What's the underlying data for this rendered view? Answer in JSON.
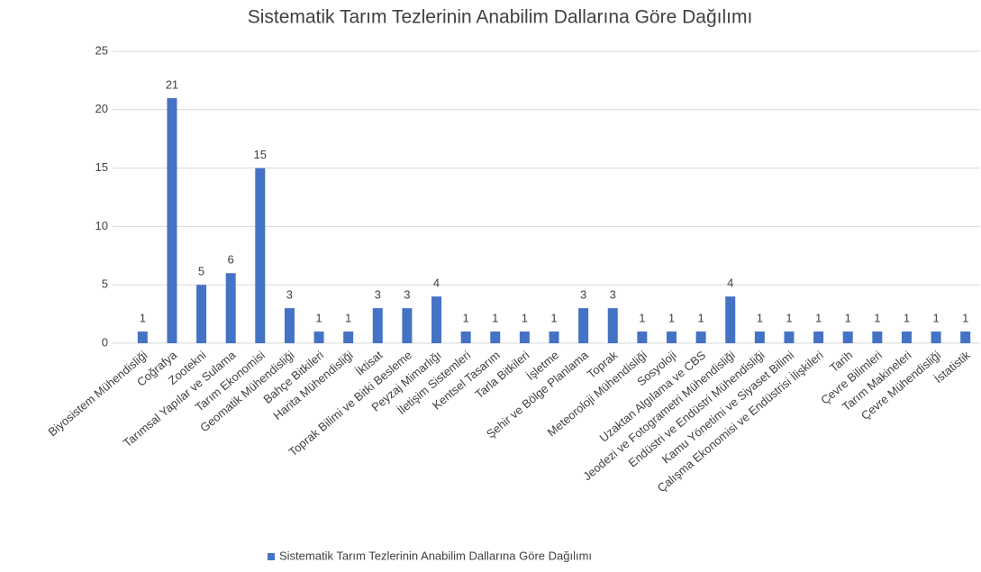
{
  "chart_data": {
    "type": "bar",
    "title": "Sistematik Tarım Tezlerinin Anabilim Dallarına Göre Dağılımı",
    "categories": [
      "Biyosistem Mühendisliği",
      "Coğrafya",
      "Zootekni",
      "Tarımsal Yapılar ve Sulama",
      "Tarım Ekonomisi",
      "Geomatik Mühendisliği",
      "Bahçe Bitkileri",
      "Harita Mühendisliği",
      "İktisat",
      "Toprak Bilimi ve Bitki Besleme",
      "Peyzaj Mimarlığı",
      "İletişim Sistemleri",
      "Kentsel Tasarım",
      "Tarla Bitkileri",
      "İşletme",
      "Şehir ve Bölge Planlama",
      "Toprak",
      "Meteoroloji Mühendisliği",
      "Sosyoloji",
      "Uzaktan Algılama ve CBS",
      "Jeodezi ve Fotogrametri Mühendisliği",
      "Endüstri ve Endüstri Mühendisliği",
      "Kamu Yönetimi ve Siyaset Bilimi",
      "Çalışma Ekonomisi ve Endüstrisi İlişkileri",
      "Tarih",
      "Çevre Bilimleri",
      "Tarım Makineleri",
      "Çevre Mühendisliği",
      "İstatistik"
    ],
    "series": [
      {
        "name": "Sistematik Tarım Tezlerinin Anabilim Dallarına Göre Dağılımı",
        "color": "#4472c4",
        "values": [
          1,
          21,
          5,
          6,
          15,
          3,
          1,
          1,
          3,
          3,
          4,
          1,
          1,
          1,
          1,
          3,
          3,
          1,
          1,
          1,
          4,
          1,
          1,
          1,
          1,
          1,
          1,
          1,
          1
        ]
      }
    ],
    "ylim": [
      0,
      25
    ],
    "yticks": [
      0,
      5,
      10,
      15,
      20,
      25
    ],
    "grid": true,
    "legend": "bottom"
  }
}
